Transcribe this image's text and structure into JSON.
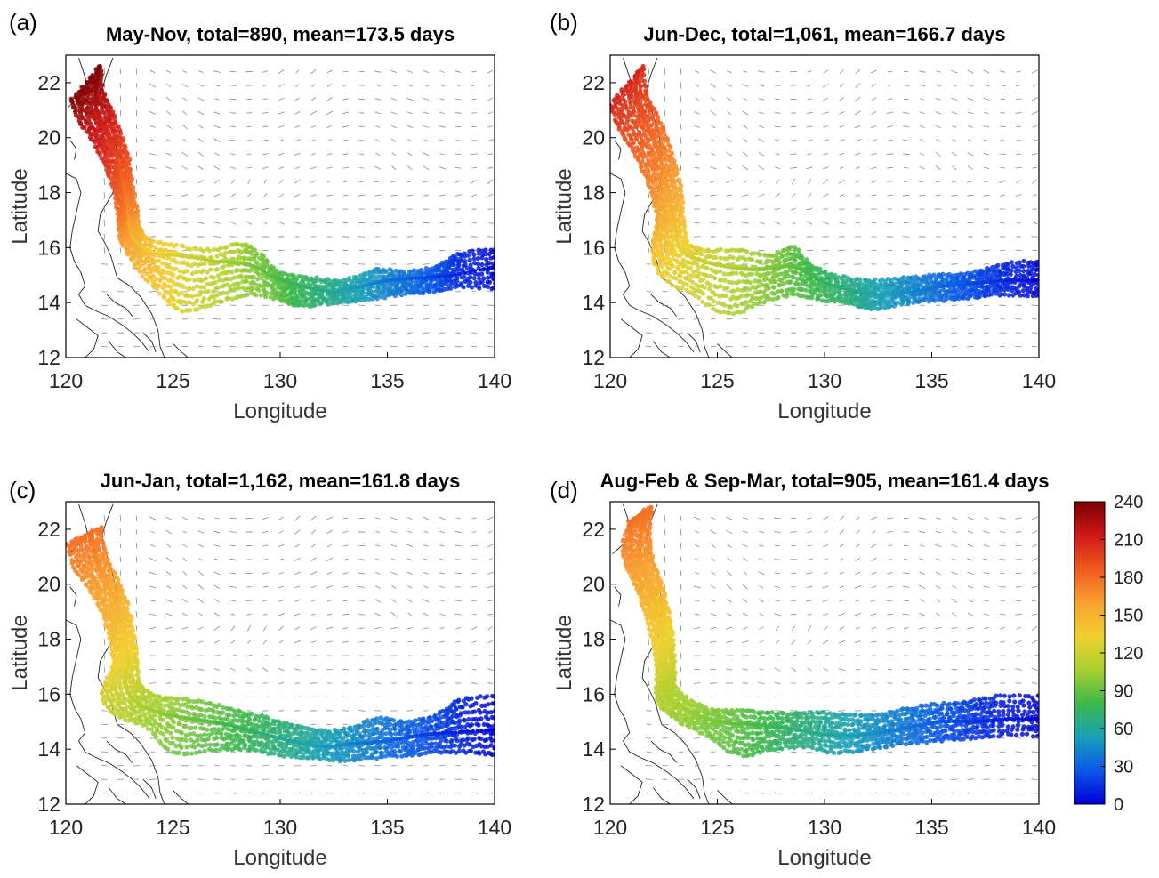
{
  "panels": [
    {
      "label": "(a)",
      "title": "May-Nov, total=890, mean=173.5 days",
      "xlabel": "Longitude",
      "ylabel": "Latitude",
      "xlim": [
        120,
        140
      ],
      "ylim": [
        12,
        23
      ],
      "xticks": [
        120,
        125,
        130,
        135,
        140
      ],
      "yticks": [
        12,
        14,
        16,
        18,
        20,
        22
      ],
      "track": {
        "spine": [
          [
            121.5,
            22.5
          ],
          [
            121.4,
            21.6
          ],
          [
            121.5,
            20.8
          ],
          [
            122.0,
            20.0
          ],
          [
            122.4,
            19.2
          ],
          [
            122.7,
            18.3
          ],
          [
            122.9,
            17.4
          ],
          [
            123.0,
            16.7
          ],
          [
            123.3,
            16.2
          ],
          [
            124.2,
            15.8
          ],
          [
            125.5,
            15.7
          ],
          [
            127.0,
            15.5
          ],
          [
            128.5,
            15.4
          ],
          [
            129.8,
            14.9
          ],
          [
            131.0,
            14.6
          ],
          [
            132.5,
            14.4
          ],
          [
            133.8,
            14.6
          ],
          [
            135.0,
            14.8
          ],
          [
            136.5,
            14.9
          ],
          [
            138.0,
            15.0
          ],
          [
            140.0,
            15.3
          ]
        ],
        "upper": [
          [
            121.6,
            22.6
          ],
          [
            121.7,
            21.8
          ],
          [
            122.1,
            21.0
          ],
          [
            122.5,
            20.2
          ],
          [
            122.9,
            19.3
          ],
          [
            123.1,
            18.3
          ],
          [
            123.3,
            17.3
          ],
          [
            123.4,
            16.8
          ],
          [
            123.8,
            16.3
          ],
          [
            125.0,
            16.1
          ],
          [
            126.5,
            15.9
          ],
          [
            128.0,
            16.1
          ],
          [
            128.8,
            15.9
          ],
          [
            130.0,
            15.1
          ],
          [
            131.5,
            14.9
          ],
          [
            133.0,
            14.8
          ],
          [
            134.5,
            15.2
          ],
          [
            136.0,
            15.1
          ],
          [
            137.5,
            15.4
          ],
          [
            138.5,
            15.8
          ],
          [
            140.2,
            16.0
          ]
        ],
        "lower": [
          [
            120.3,
            21.4
          ],
          [
            120.6,
            20.7
          ],
          [
            121.3,
            19.8
          ],
          [
            121.9,
            18.9
          ],
          [
            122.3,
            18.0
          ],
          [
            122.5,
            17.0
          ],
          [
            122.6,
            16.3
          ],
          [
            123.2,
            15.4
          ],
          [
            124.5,
            14.3
          ],
          [
            125.5,
            13.7
          ],
          [
            127.0,
            14.0
          ],
          [
            128.5,
            14.3
          ],
          [
            130.0,
            14.1
          ],
          [
            131.0,
            13.9
          ],
          [
            132.5,
            14.0
          ],
          [
            134.0,
            14.1
          ],
          [
            135.5,
            14.3
          ],
          [
            137.0,
            14.4
          ],
          [
            138.5,
            14.6
          ],
          [
            140.2,
            14.5
          ]
        ],
        "age_range": [
          240,
          0
        ]
      }
    },
    {
      "label": "(b)",
      "title": "Jun-Dec, total=1,061, mean=166.7 days",
      "xlabel": "Longitude",
      "ylabel": "Latitude",
      "xlim": [
        120,
        140
      ],
      "ylim": [
        12,
        23
      ],
      "xticks": [
        120,
        125,
        130,
        135,
        140
      ],
      "yticks": [
        12,
        14,
        16,
        18,
        20,
        22
      ],
      "track": {
        "spine": [
          [
            121.3,
            22.4
          ],
          [
            121.2,
            21.6
          ],
          [
            121.6,
            20.7
          ],
          [
            122.1,
            19.8
          ],
          [
            122.5,
            18.8
          ],
          [
            122.8,
            17.8
          ],
          [
            123.0,
            16.9
          ],
          [
            123.2,
            16.1
          ],
          [
            124.0,
            15.6
          ],
          [
            125.5,
            15.3
          ],
          [
            127.0,
            15.2
          ],
          [
            128.5,
            15.3
          ],
          [
            129.8,
            14.8
          ],
          [
            131.0,
            14.5
          ],
          [
            132.5,
            14.3
          ],
          [
            134.0,
            14.4
          ],
          [
            135.5,
            14.6
          ],
          [
            137.0,
            14.7
          ],
          [
            138.5,
            14.8
          ],
          [
            140.0,
            14.8
          ]
        ],
        "upper": [
          [
            121.5,
            22.6
          ],
          [
            121.6,
            21.8
          ],
          [
            122.1,
            20.9
          ],
          [
            122.6,
            20.0
          ],
          [
            123.0,
            19.0
          ],
          [
            123.3,
            18.0
          ],
          [
            123.4,
            17.0
          ],
          [
            123.6,
            16.2
          ],
          [
            124.5,
            15.9
          ],
          [
            126.0,
            15.9
          ],
          [
            127.5,
            15.7
          ],
          [
            128.5,
            16.0
          ],
          [
            129.5,
            15.3
          ],
          [
            131.0,
            14.9
          ],
          [
            132.5,
            14.8
          ],
          [
            134.0,
            14.9
          ],
          [
            135.5,
            15.0
          ],
          [
            137.0,
            15.1
          ],
          [
            138.5,
            15.4
          ],
          [
            140.2,
            15.5
          ]
        ],
        "lower": [
          [
            120.0,
            21.2
          ],
          [
            120.4,
            20.4
          ],
          [
            121.0,
            19.6
          ],
          [
            121.6,
            18.7
          ],
          [
            122.0,
            17.8
          ],
          [
            122.2,
            16.9
          ],
          [
            122.0,
            15.9
          ],
          [
            122.4,
            15.0
          ],
          [
            123.8,
            14.3
          ],
          [
            125.5,
            13.6
          ],
          [
            127.0,
            14.0
          ],
          [
            128.5,
            14.3
          ],
          [
            130.0,
            14.1
          ],
          [
            131.5,
            13.9
          ],
          [
            132.5,
            13.8
          ],
          [
            134.0,
            14.0
          ],
          [
            135.5,
            14.1
          ],
          [
            137.0,
            14.2
          ],
          [
            138.5,
            14.3
          ],
          [
            140.2,
            14.2
          ]
        ],
        "age_range": [
          210,
          0
        ]
      }
    },
    {
      "label": "(c)",
      "title": "Jun-Jan, total=1,162, mean=161.8 days",
      "xlabel": "Longitude",
      "ylabel": "Latitude",
      "xlim": [
        120,
        140
      ],
      "ylim": [
        12,
        23
      ],
      "xticks": [
        120,
        125,
        130,
        135,
        140
      ],
      "yticks": [
        12,
        14,
        16,
        18,
        20,
        22
      ],
      "track": {
        "spine": [
          [
            121.2,
            21.8
          ],
          [
            121.4,
            21.0
          ],
          [
            121.9,
            20.1
          ],
          [
            122.4,
            19.2
          ],
          [
            122.7,
            18.3
          ],
          [
            122.9,
            17.3
          ],
          [
            122.8,
            16.4
          ],
          [
            123.3,
            15.7
          ],
          [
            124.5,
            15.3
          ],
          [
            126.0,
            15.1
          ],
          [
            127.5,
            14.9
          ],
          [
            129.0,
            14.6
          ],
          [
            130.5,
            14.3
          ],
          [
            132.0,
            14.1
          ],
          [
            133.5,
            14.2
          ],
          [
            135.0,
            14.3
          ],
          [
            136.5,
            14.5
          ],
          [
            138.0,
            14.6
          ],
          [
            140.0,
            14.7
          ]
        ],
        "upper": [
          [
            121.6,
            22.1
          ],
          [
            121.8,
            21.2
          ],
          [
            122.3,
            20.3
          ],
          [
            122.8,
            19.4
          ],
          [
            123.1,
            18.4
          ],
          [
            123.3,
            17.4
          ],
          [
            123.4,
            16.5
          ],
          [
            124.0,
            16.0
          ],
          [
            125.5,
            15.8
          ],
          [
            127.0,
            15.6
          ],
          [
            128.5,
            15.3
          ],
          [
            130.0,
            15.0
          ],
          [
            131.5,
            14.7
          ],
          [
            133.0,
            14.7
          ],
          [
            134.5,
            15.1
          ],
          [
            136.0,
            15.0
          ],
          [
            137.5,
            15.3
          ],
          [
            138.5,
            15.8
          ],
          [
            140.2,
            15.9
          ]
        ],
        "lower": [
          [
            120.1,
            21.5
          ],
          [
            120.4,
            20.6
          ],
          [
            121.2,
            19.7
          ],
          [
            121.8,
            18.8
          ],
          [
            122.1,
            17.9
          ],
          [
            122.2,
            17.0
          ],
          [
            121.7,
            16.0
          ],
          [
            122.4,
            15.2
          ],
          [
            123.8,
            14.8
          ],
          [
            125.0,
            13.9
          ],
          [
            127.0,
            14.0
          ],
          [
            128.5,
            14.0
          ],
          [
            130.0,
            13.8
          ],
          [
            131.5,
            13.7
          ],
          [
            133.0,
            13.6
          ],
          [
            134.5,
            13.7
          ],
          [
            136.0,
            13.8
          ],
          [
            137.5,
            13.9
          ],
          [
            139.0,
            13.9
          ],
          [
            140.2,
            13.8
          ]
        ],
        "age_range": [
          180,
          0
        ]
      }
    },
    {
      "label": "(d)",
      "title": "Aug-Feb & Sep-Mar, total=905, mean=161.4 days",
      "xlabel": "Longitude",
      "ylabel": "Latitude",
      "xlim": [
        120,
        140
      ],
      "ylim": [
        12,
        23
      ],
      "xticks": [
        120,
        125,
        130,
        135,
        140
      ],
      "yticks": [
        12,
        14,
        16,
        18,
        20,
        22
      ],
      "track": {
        "spine": [
          [
            121.6,
            22.5
          ],
          [
            121.4,
            21.6
          ],
          [
            121.5,
            20.6
          ],
          [
            121.9,
            19.7
          ],
          [
            122.3,
            18.8
          ],
          [
            122.5,
            17.8
          ],
          [
            122.6,
            16.9
          ],
          [
            122.7,
            16.0
          ],
          [
            123.6,
            15.4
          ],
          [
            125.0,
            15.0
          ],
          [
            126.5,
            14.9
          ],
          [
            128.0,
            14.8
          ],
          [
            129.5,
            14.6
          ],
          [
            131.0,
            14.5
          ],
          [
            132.5,
            14.6
          ],
          [
            134.0,
            14.8
          ],
          [
            135.5,
            15.0
          ],
          [
            137.0,
            15.0
          ],
          [
            138.5,
            15.1
          ],
          [
            140.0,
            15.1
          ]
        ],
        "upper": [
          [
            121.9,
            22.8
          ],
          [
            121.8,
            21.8
          ],
          [
            122.0,
            20.8
          ],
          [
            122.4,
            19.9
          ],
          [
            122.7,
            19.0
          ],
          [
            122.9,
            18.0
          ],
          [
            123.0,
            17.0
          ],
          [
            123.1,
            16.2
          ],
          [
            124.5,
            15.5
          ],
          [
            126.0,
            15.4
          ],
          [
            127.5,
            15.3
          ],
          [
            129.0,
            15.3
          ],
          [
            130.5,
            15.3
          ],
          [
            132.0,
            15.2
          ],
          [
            133.5,
            15.4
          ],
          [
            135.0,
            15.6
          ],
          [
            136.5,
            15.7
          ],
          [
            138.0,
            15.9
          ],
          [
            140.2,
            15.9
          ]
        ],
        "lower": [
          [
            120.9,
            22.3
          ],
          [
            120.6,
            21.3
          ],
          [
            120.9,
            20.4
          ],
          [
            121.4,
            19.5
          ],
          [
            121.8,
            18.6
          ],
          [
            122.1,
            17.6
          ],
          [
            122.2,
            16.7
          ],
          [
            122.2,
            15.8
          ],
          [
            123.0,
            15.1
          ],
          [
            124.5,
            14.5
          ],
          [
            126.0,
            13.8
          ],
          [
            127.5,
            14.0
          ],
          [
            129.0,
            14.1
          ],
          [
            130.5,
            13.9
          ],
          [
            132.0,
            14.0
          ],
          [
            133.5,
            14.2
          ],
          [
            135.0,
            14.3
          ],
          [
            136.5,
            14.4
          ],
          [
            138.0,
            14.5
          ],
          [
            140.2,
            14.5
          ]
        ],
        "age_range": [
          180,
          0
        ]
      }
    }
  ],
  "colorbar": {
    "min": 0,
    "max": 240,
    "ticks": [
      0,
      30,
      60,
      90,
      120,
      150,
      180,
      210,
      240
    ],
    "colors": [
      "#0000d8",
      "#0a58e8",
      "#1aa0b8",
      "#3cb84a",
      "#a8d030",
      "#f0d030",
      "#f8a030",
      "#f05a1e",
      "#d01818",
      "#7a0000"
    ]
  },
  "chart_data": [
    {
      "type": "scatter",
      "title": "May-Nov, total=890, mean=173.5 days",
      "xlabel": "Longitude",
      "ylabel": "Latitude",
      "xlim": [
        120,
        140
      ],
      "ylim": [
        12,
        23
      ],
      "grid": false,
      "color_scale": "days, 0-240"
    },
    {
      "type": "scatter",
      "title": "Jun-Dec, total=1,061, mean=166.7 days",
      "xlabel": "Longitude",
      "ylabel": "Latitude",
      "xlim": [
        120,
        140
      ],
      "ylim": [
        12,
        23
      ],
      "grid": false,
      "color_scale": "days, 0-240"
    },
    {
      "type": "scatter",
      "title": "Jun-Jan, total=1,162, mean=161.8 days",
      "xlabel": "Longitude",
      "ylabel": "Latitude",
      "xlim": [
        120,
        140
      ],
      "ylim": [
        12,
        23
      ],
      "grid": false,
      "color_scale": "days, 0-240"
    },
    {
      "type": "scatter",
      "title": "Aug-Feb & Sep-Mar, total=905, mean=161.4 days",
      "xlabel": "Longitude",
      "ylabel": "Latitude",
      "xlim": [
        120,
        140
      ],
      "ylim": [
        12,
        23
      ],
      "grid": false,
      "color_scale": "days, 0-240"
    }
  ]
}
